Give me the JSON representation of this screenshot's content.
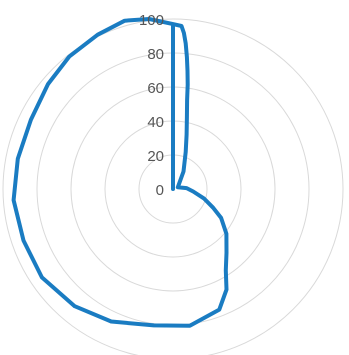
{
  "chart_data": {
    "type": "radar",
    "title": "",
    "radial_axis": {
      "min": 0,
      "max": 100,
      "ticks": [
        {
          "value": 0,
          "label": "0"
        },
        {
          "value": 20,
          "label": "20"
        },
        {
          "value": 40,
          "label": "40"
        },
        {
          "value": 60,
          "label": "60"
        },
        {
          "value": 80,
          "label": "80"
        },
        {
          "value": 100,
          "label": "100"
        }
      ]
    },
    "grid": "concentric circles",
    "legend": "none",
    "angle_unit": "degrees clockwise from top",
    "series": [
      {
        "color": "#1a7cc2",
        "points": [
          {
            "angle": 0,
            "value": 97
          },
          {
            "angle": 3,
            "value": 96
          },
          {
            "angle": 4,
            "value": 92
          },
          {
            "angle": 5,
            "value": 86
          },
          {
            "angle": 6,
            "value": 78
          },
          {
            "angle": 7,
            "value": 70
          },
          {
            "angle": 8,
            "value": 62
          },
          {
            "angle": 9,
            "value": 53
          },
          {
            "angle": 11,
            "value": 43
          },
          {
            "angle": 14,
            "value": 33
          },
          {
            "angle": 19,
            "value": 23
          },
          {
            "angle": 31,
            "value": 12
          },
          {
            "angle": 70,
            "value": 3
          },
          {
            "angle": 86,
            "value": 8
          },
          {
            "angle": 97,
            "value": 12
          },
          {
            "angle": 107,
            "value": 19
          },
          {
            "angle": 115,
            "value": 26
          },
          {
            "angle": 121,
            "value": 33
          },
          {
            "angle": 130,
            "value": 41
          },
          {
            "angle": 140,
            "value": 49
          },
          {
            "angle": 147,
            "value": 57
          },
          {
            "angle": 152,
            "value": 67
          },
          {
            "angle": 159,
            "value": 76
          },
          {
            "angle": 173,
            "value": 81
          },
          {
            "angle": 188,
            "value": 81
          },
          {
            "angle": 205,
            "value": 86
          },
          {
            "angle": 220,
            "value": 90
          },
          {
            "angle": 236,
            "value": 93
          },
          {
            "angle": 251,
            "value": 93
          },
          {
            "angle": 266,
            "value": 94
          },
          {
            "angle": 281,
            "value": 93
          },
          {
            "angle": 296,
            "value": 93
          },
          {
            "angle": 310,
            "value": 96
          },
          {
            "angle": 322,
            "value": 99
          },
          {
            "angle": 334,
            "value": 101
          },
          {
            "angle": 344,
            "value": 103
          },
          {
            "angle": 352,
            "value": 101
          },
          {
            "angle": 360,
            "value": 97
          }
        ]
      }
    ]
  }
}
